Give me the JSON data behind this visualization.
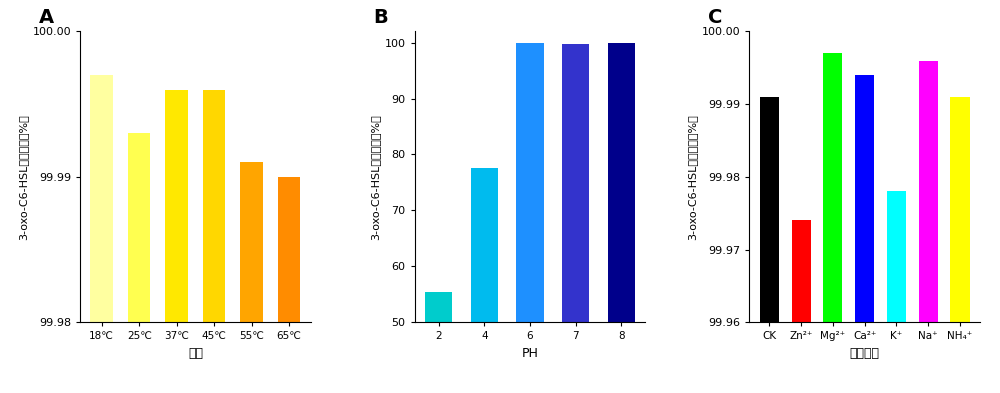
{
  "A": {
    "categories": [
      "18℃",
      "25℃",
      "37℃",
      "45℃",
      "55℃",
      "65℃"
    ],
    "values": [
      99.997,
      99.993,
      99.996,
      99.996,
      99.991,
      99.99
    ],
    "colors": [
      "#FFFFA0",
      "#FFFF50",
      "#FFE800",
      "#FFD700",
      "#FFA500",
      "#FF8C00"
    ],
    "xlabel": "温度",
    "ylabel": "3-oxo-C6-HSL的降解量（%）",
    "ylim": [
      99.98,
      100.0
    ],
    "yticks": [
      99.98,
      99.99,
      100.0
    ],
    "ytick_labels": [
      "99.98",
      "99.99",
      "100.00"
    ],
    "panel_label": "A"
  },
  "B": {
    "categories": [
      "2",
      "4",
      "6",
      "7",
      "8"
    ],
    "values": [
      55.5,
      77.5,
      100.0,
      99.8,
      100.0
    ],
    "colors": [
      "#00CCCC",
      "#00BBEE",
      "#1E90FF",
      "#3333CC",
      "#00008B"
    ],
    "xlabel": "PH",
    "ylabel": "3-oxo-C6-HSL的降解量（%）",
    "ylim": [
      50,
      102
    ],
    "yticks": [
      50,
      60,
      70,
      80,
      90,
      100
    ],
    "ytick_labels": [
      "50",
      "60",
      "70",
      "80",
      "90",
      "100"
    ],
    "panel_label": "B"
  },
  "C": {
    "categories": [
      "CK",
      "Zn²⁺",
      "Mg²⁺",
      "Ca²⁺",
      "K⁺",
      "Na⁺",
      "NH₄⁺"
    ],
    "values": [
      99.991,
      99.974,
      99.997,
      99.994,
      99.978,
      99.996,
      99.991
    ],
    "colors": [
      "#000000",
      "#FF0000",
      "#00FF00",
      "#0000FF",
      "#00FFFF",
      "#FF00FF",
      "#FFFF00"
    ],
    "xlabel": "金属离子",
    "ylabel": "3-oxo-C6-HSL的降解量（%）",
    "ylim": [
      99.96,
      100.0
    ],
    "yticks": [
      99.96,
      99.97,
      99.98,
      99.99,
      100.0
    ],
    "ytick_labels": [
      "99.96",
      "99.97",
      "99.98",
      "99.99",
      "100.00"
    ],
    "panel_label": "C"
  }
}
